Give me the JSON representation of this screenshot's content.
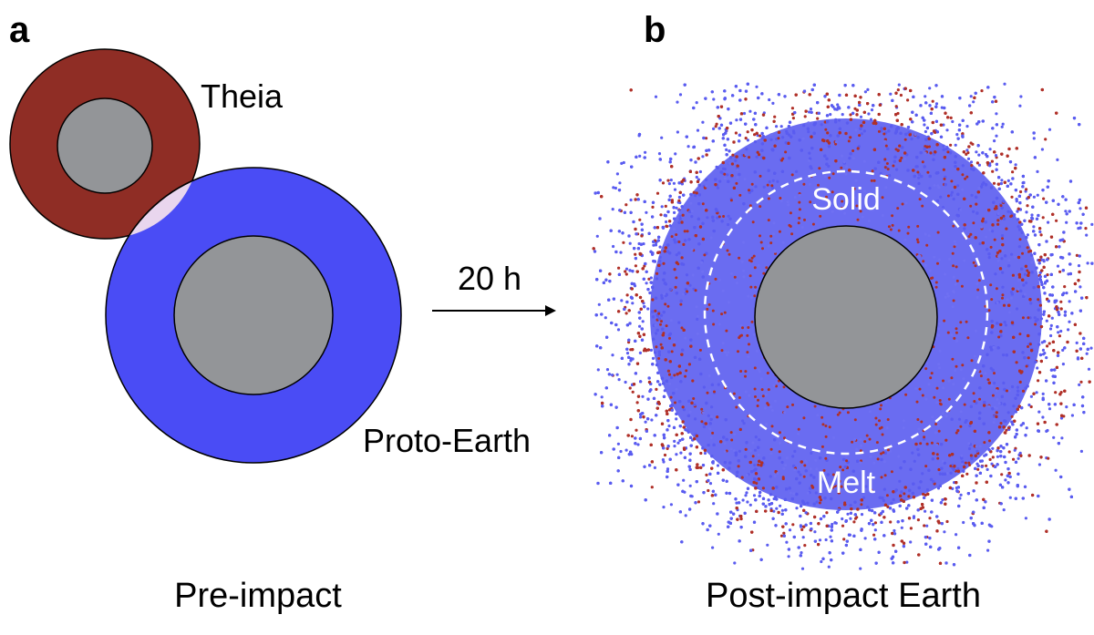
{
  "panel_a": {
    "letter": "a",
    "theia_label": "Theia",
    "proto_earth_label": "Proto-Earth",
    "caption": "Pre-impact",
    "colors": {
      "theia_mantle": "#8f2d25",
      "proto_earth_mantle": "#4a4cf5",
      "core": "#939598",
      "overlap": "#e9d6ee"
    }
  },
  "arrow": {
    "label": "20 h"
  },
  "panel_b": {
    "letter": "b",
    "solid_label": "Solid",
    "melt_label": "Melt",
    "caption": "Post-impact Earth",
    "colors": {
      "proto_particles": "#5a5cf0",
      "theia_particles": "#b03028",
      "core": "#939598",
      "boundary": "#ffffff"
    }
  }
}
